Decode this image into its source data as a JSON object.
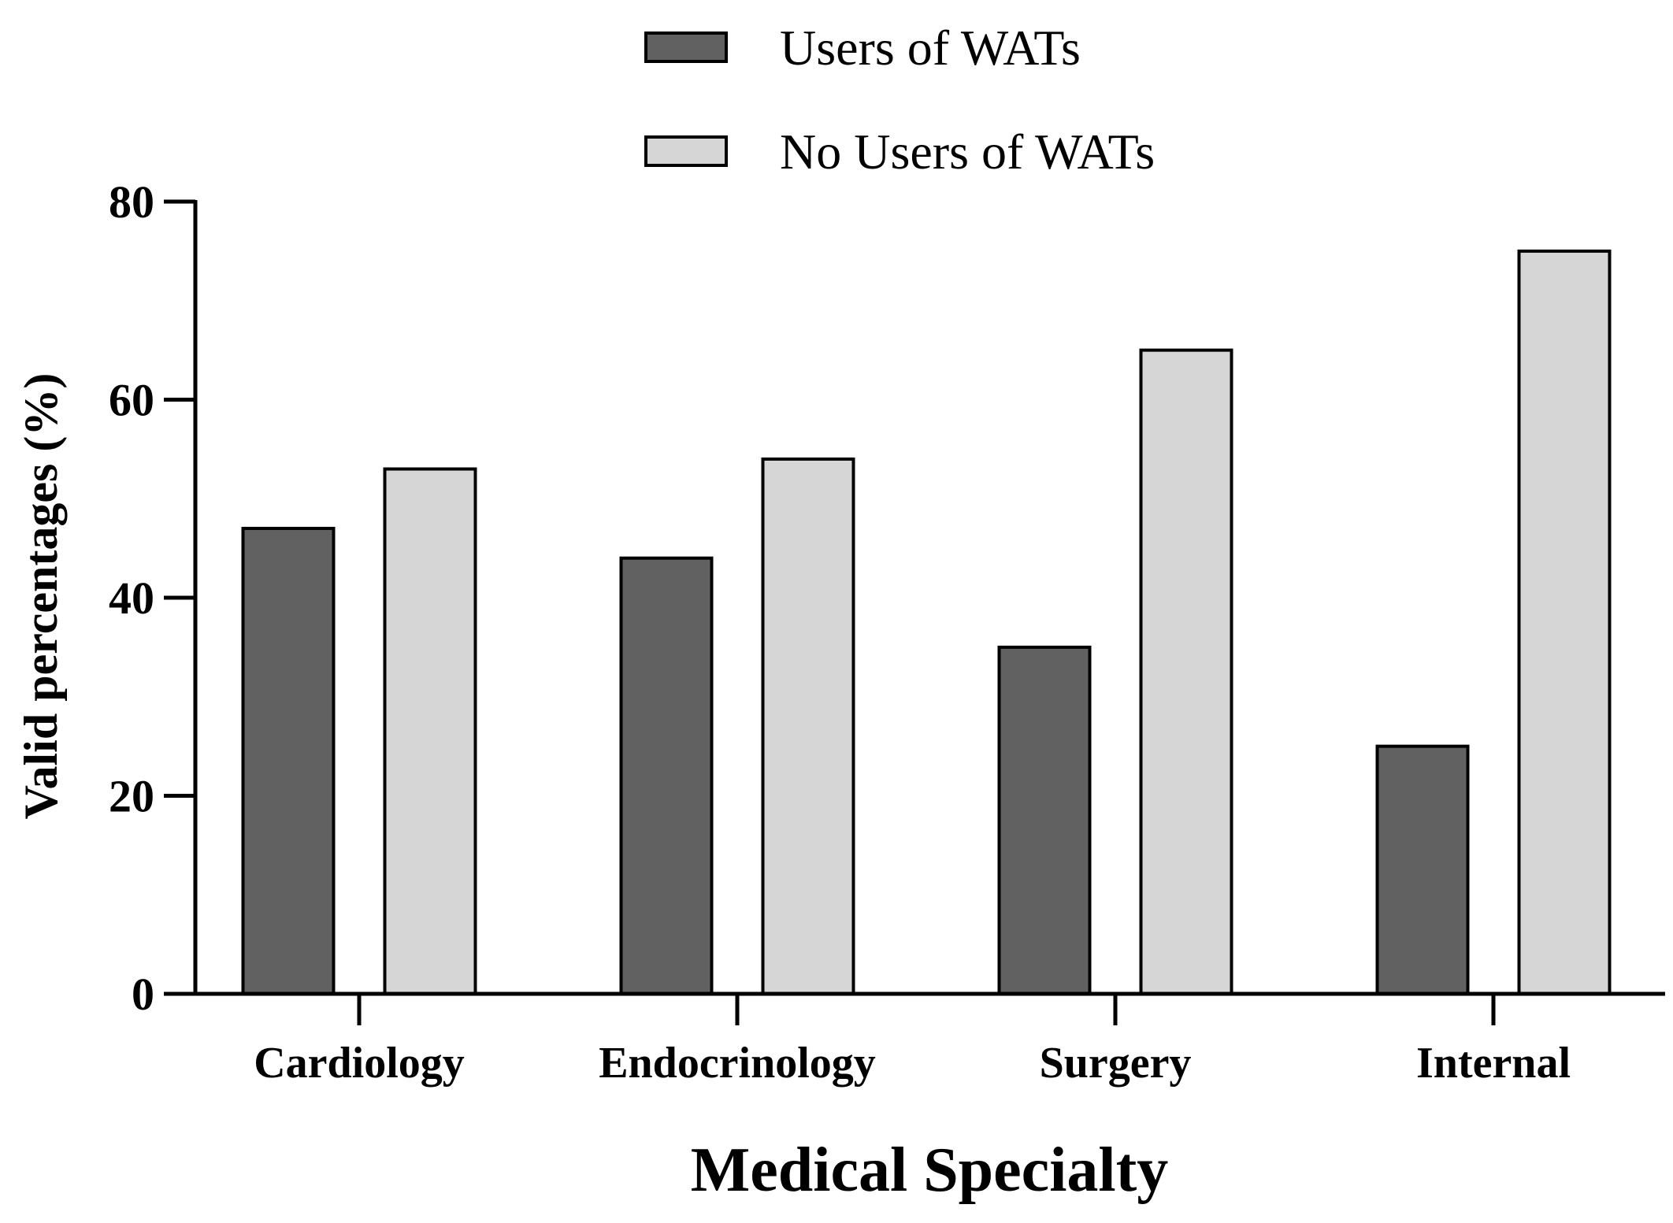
{
  "chart_data": {
    "type": "bar",
    "title": "",
    "categories": [
      "Cardiology",
      "Endocrinology",
      "Surgery",
      "Internal"
    ],
    "series": [
      {
        "name": "Users of WATs",
        "values": [
          47,
          44,
          35,
          25
        ],
        "color": "#616161"
      },
      {
        "name": "No Users of WATs",
        "values": [
          53,
          54,
          65,
          75
        ],
        "color": "#d6d6d6"
      }
    ],
    "xlabel": "Medical Specialty",
    "ylabel": "Valid percentages (%)",
    "ylim": [
      0,
      80
    ],
    "yticks": [
      0,
      20,
      40,
      60,
      80
    ],
    "grid": false,
    "legend_position": "top-center"
  }
}
